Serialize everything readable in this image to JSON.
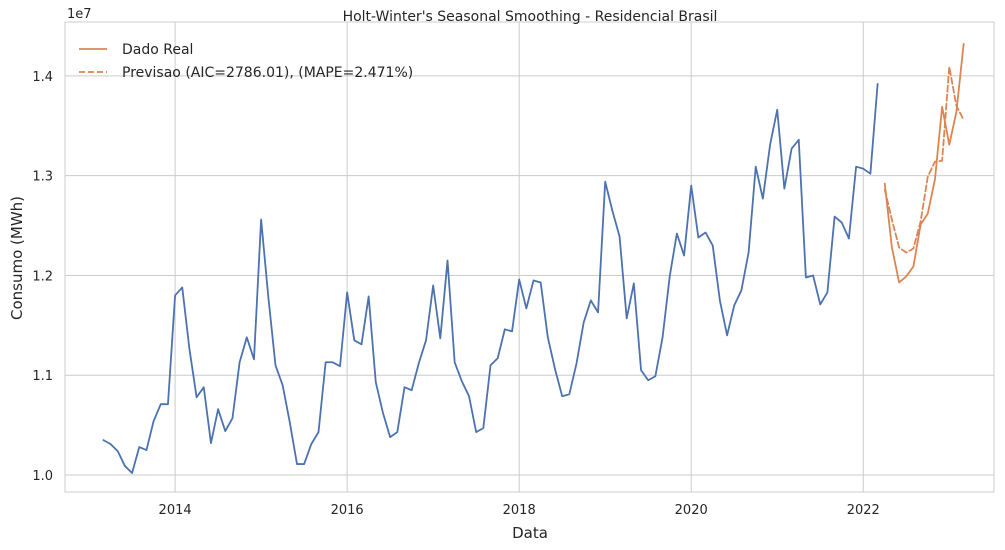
{
  "chart_data": {
    "type": "line",
    "title": "Holt-Winter's Seasonal Smoothing - Residencial Brasil",
    "xlabel": "Data",
    "ylabel": "Consumo (MWh)",
    "y_multiplier_label": "1e7",
    "grid": true,
    "legend_position": "top-left",
    "xlim": [
      2012.72,
      2023.52
    ],
    "ylim": [
      0.983,
      1.454
    ],
    "x_ticks": [
      2014,
      2016,
      2018,
      2020,
      2022
    ],
    "y_ticks": [
      1.0,
      1.1,
      1.2,
      1.3,
      1.4
    ],
    "x_tick_labels": [
      "2014",
      "2016",
      "2018",
      "2020",
      "2022"
    ],
    "y_tick_labels": [
      "1.0",
      "1.1",
      "1.2",
      "1.3",
      "1.4"
    ],
    "series": [
      {
        "color": "#4c72b0",
        "style": "solid",
        "x": [
          2013.167,
          2013.25,
          2013.333,
          2013.417,
          2013.5,
          2013.583,
          2013.667,
          2013.75,
          2013.833,
          2013.917,
          2014.0,
          2014.083,
          2014.167,
          2014.25,
          2014.333,
          2014.417,
          2014.5,
          2014.583,
          2014.667,
          2014.75,
          2014.833,
          2014.917,
          2015.0,
          2015.083,
          2015.167,
          2015.25,
          2015.333,
          2015.417,
          2015.5,
          2015.583,
          2015.667,
          2015.75,
          2015.833,
          2015.917,
          2016.0,
          2016.083,
          2016.167,
          2016.25,
          2016.333,
          2016.417,
          2016.5,
          2016.583,
          2016.667,
          2016.75,
          2016.833,
          2016.917,
          2017.0,
          2017.083,
          2017.167,
          2017.25,
          2017.333,
          2017.417,
          2017.5,
          2017.583,
          2017.667,
          2017.75,
          2017.833,
          2017.917,
          2018.0,
          2018.083,
          2018.167,
          2018.25,
          2018.333,
          2018.417,
          2018.5,
          2018.583,
          2018.667,
          2018.75,
          2018.833,
          2018.917,
          2019.0,
          2019.083,
          2019.167,
          2019.25,
          2019.333,
          2019.417,
          2019.5,
          2019.583,
          2019.667,
          2019.75,
          2019.833,
          2019.917,
          2020.0,
          2020.083,
          2020.167,
          2020.25,
          2020.333,
          2020.417,
          2020.5,
          2020.583,
          2020.667,
          2020.75,
          2020.833,
          2020.917,
          2021.0,
          2021.083,
          2021.167,
          2021.25,
          2021.333,
          2021.417,
          2021.5,
          2021.583,
          2021.667,
          2021.75,
          2021.833,
          2021.917,
          2022.0,
          2022.083,
          2022.167
        ],
        "values": [
          1.035,
          1.031,
          1.024,
          1.009,
          1.002,
          1.028,
          1.025,
          1.054,
          1.071,
          1.071,
          1.18,
          1.188,
          1.126,
          1.078,
          1.088,
          1.032,
          1.066,
          1.044,
          1.057,
          1.113,
          1.138,
          1.116,
          1.256,
          1.179,
          1.11,
          1.09,
          1.053,
          1.011,
          1.011,
          1.031,
          1.043,
          1.113,
          1.113,
          1.109,
          1.183,
          1.135,
          1.131,
          1.179,
          1.093,
          1.062,
          1.038,
          1.043,
          1.088,
          1.085,
          1.112,
          1.135,
          1.19,
          1.137,
          1.215,
          1.113,
          1.094,
          1.079,
          1.043,
          1.047,
          1.11,
          1.117,
          1.146,
          1.144,
          1.196,
          1.167,
          1.195,
          1.193,
          1.138,
          1.106,
          1.079,
          1.081,
          1.112,
          1.153,
          1.175,
          1.163,
          1.294,
          1.265,
          1.239,
          1.157,
          1.192,
          1.105,
          1.095,
          1.099,
          1.138,
          1.199,
          1.242,
          1.22,
          1.29,
          1.238,
          1.243,
          1.23,
          1.175,
          1.14,
          1.17,
          1.185,
          1.223,
          1.309,
          1.277,
          1.331,
          1.366,
          1.287,
          1.327,
          1.336,
          1.198,
          1.2,
          1.171,
          1.183,
          1.259,
          1.253,
          1.237,
          1.309,
          1.307,
          1.302,
          1.392
        ]
      },
      {
        "name": "Dado Real",
        "color": "#dd8452",
        "style": "solid",
        "x": [
          2022.25,
          2022.333,
          2022.417,
          2022.5,
          2022.583,
          2022.667,
          2022.75,
          2022.833,
          2022.917,
          2023.0,
          2023.083,
          2023.167
        ],
        "values": [
          1.292,
          1.228,
          1.193,
          1.199,
          1.209,
          1.251,
          1.262,
          1.296,
          1.369,
          1.331,
          1.364,
          1.432
        ]
      },
      {
        "name": "Previsao (AIC=2786.01), (MAPE=2.471%)",
        "color": "#dd8452",
        "style": "dashed",
        "x": [
          2022.25,
          2022.333,
          2022.417,
          2022.5,
          2022.583,
          2022.667,
          2022.75,
          2022.833,
          2022.917,
          2023.0,
          2023.083,
          2023.167
        ],
        "values": [
          1.286,
          1.256,
          1.228,
          1.223,
          1.227,
          1.254,
          1.299,
          1.314,
          1.315,
          1.409,
          1.37,
          1.356
        ]
      }
    ]
  }
}
